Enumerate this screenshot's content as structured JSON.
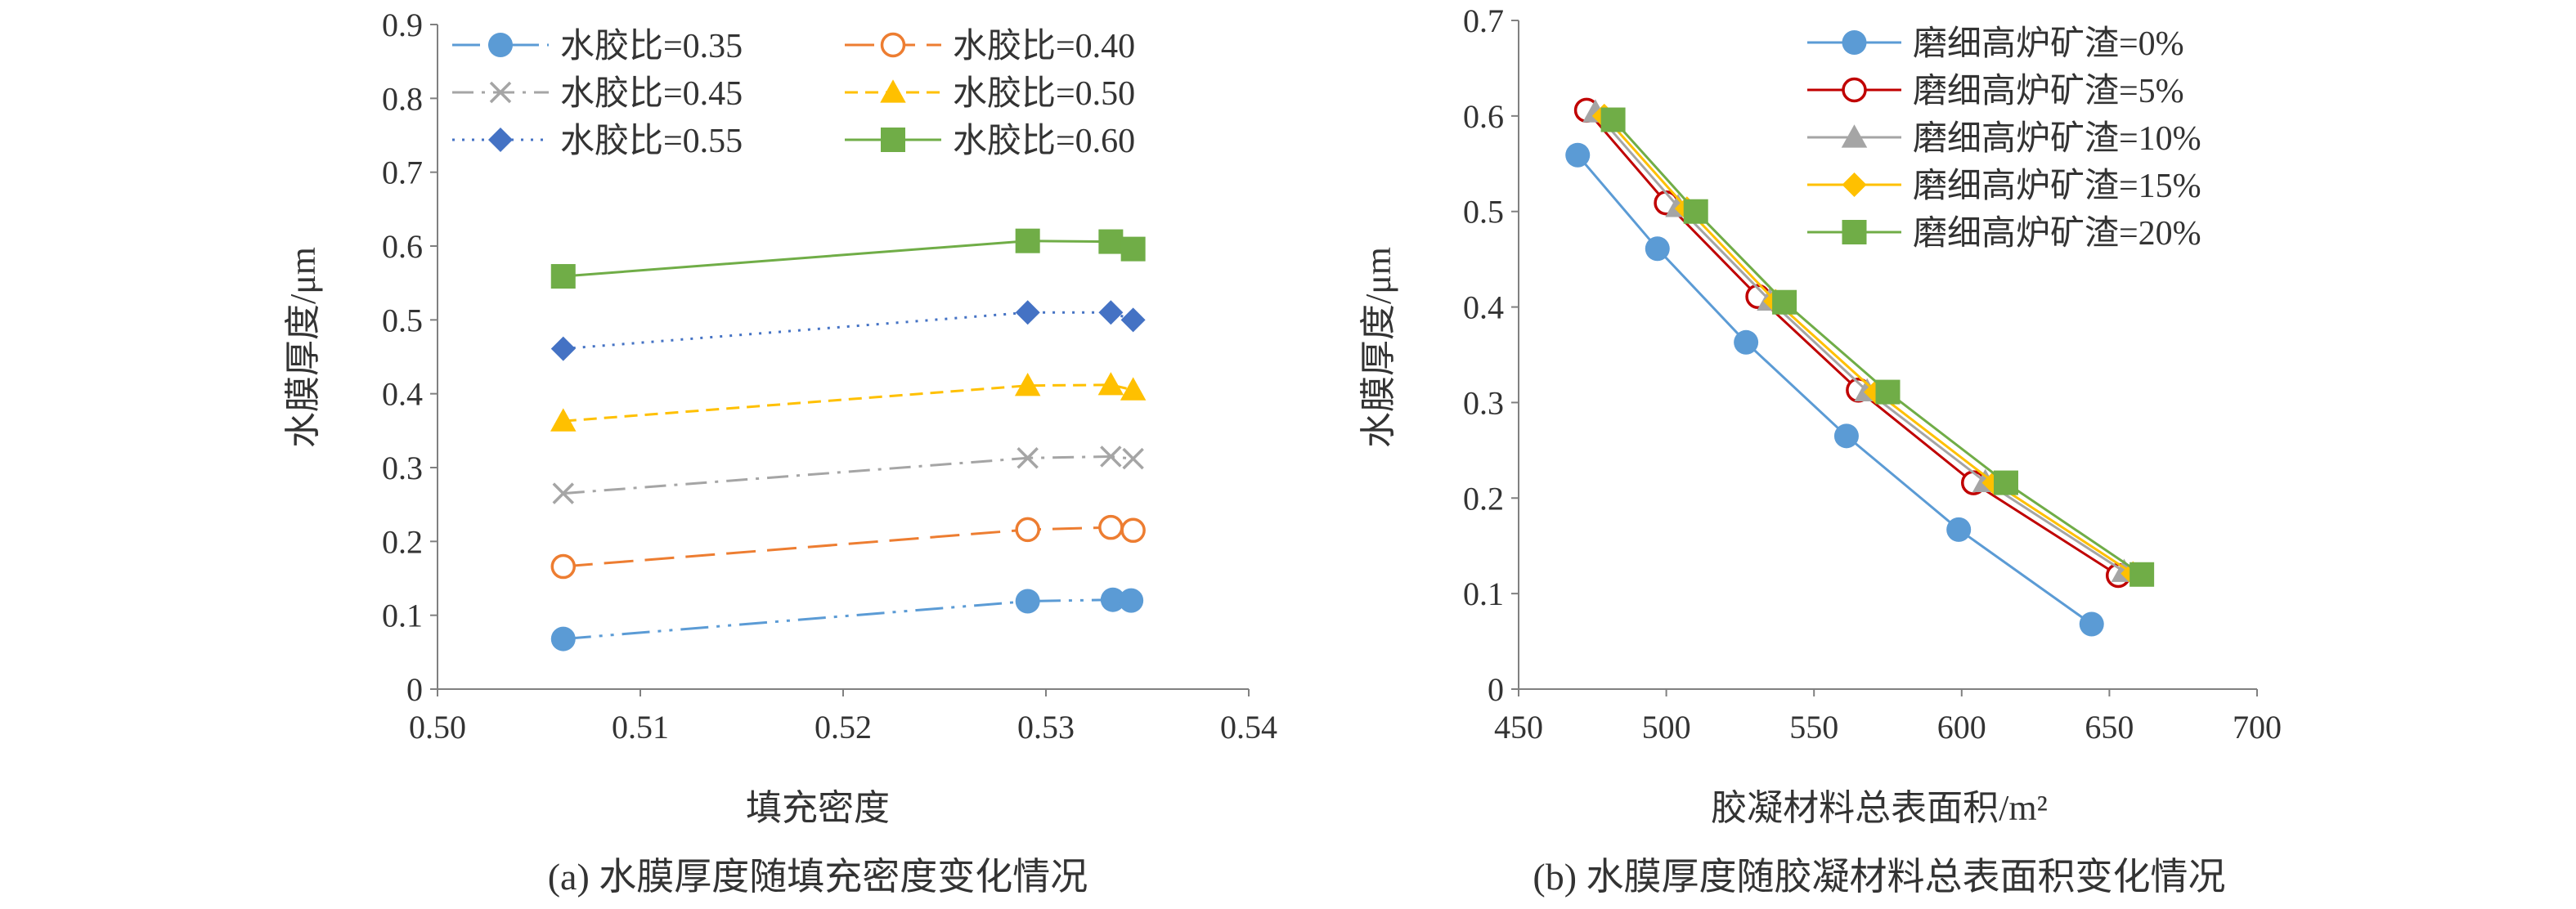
{
  "chart_data": [
    {
      "type": "line",
      "xlabel": "填充密度",
      "ylabel": "水膜厚度/μm",
      "xlim": [
        0.5,
        0.54
      ],
      "ylim": [
        0,
        0.9
      ],
      "xticks": [
        "0.50",
        "0.51",
        "0.52",
        "0.53",
        "0.54"
      ],
      "yticks": [
        "0",
        "0.1",
        "0.2",
        "0.3",
        "0.4",
        "0.5",
        "0.6",
        "0.7",
        "0.8",
        "0.9"
      ],
      "caption": "(a) 水膜厚度随填充密度变化情况",
      "legend_position": "top",
      "series": [
        {
          "name": "水胶比=0.35",
          "color": "#5B9BD5",
          "marker": "circle",
          "dash": "longdashdotdot",
          "x": [
            0.5062,
            0.5291,
            0.5333,
            0.5342
          ],
          "y": [
            0.068,
            0.119,
            0.121,
            0.12
          ]
        },
        {
          "name": "水胶比=0.40",
          "color": "#ED7D31",
          "marker": "circle-open",
          "dash": "longdash",
          "x": [
            0.5062,
            0.5291,
            0.5332,
            0.5343
          ],
          "y": [
            0.166,
            0.216,
            0.219,
            0.215
          ]
        },
        {
          "name": "水胶比=0.45",
          "color": "#A5A5A5",
          "marker": "x",
          "dash": "dashdot",
          "x": [
            0.5062,
            0.5291,
            0.5332,
            0.5343
          ],
          "y": [
            0.265,
            0.313,
            0.315,
            0.312
          ]
        },
        {
          "name": "水胶比=0.50",
          "color": "#FFC000",
          "marker": "triangle",
          "dash": "dash",
          "x": [
            0.5062,
            0.5291,
            0.5332,
            0.5343
          ],
          "y": [
            0.363,
            0.411,
            0.412,
            0.405
          ]
        },
        {
          "name": "水胶比=0.55",
          "color": "#4472C4",
          "marker": "diamond",
          "dash": "dot",
          "x": [
            0.5062,
            0.5291,
            0.5332,
            0.5343
          ],
          "y": [
            0.461,
            0.51,
            0.51,
            0.5
          ]
        },
        {
          "name": "水胶比=0.60",
          "color": "#70AD47",
          "marker": "square",
          "dash": "solid",
          "x": [
            0.5062,
            0.5291,
            0.5332,
            0.5343
          ],
          "y": [
            0.559,
            0.607,
            0.606,
            0.596
          ]
        }
      ]
    },
    {
      "type": "line",
      "xlabel": "胶凝材料总表面积/m²",
      "ylabel": "水膜厚度/μm",
      "xlim": [
        450,
        700
      ],
      "ylim": [
        0,
        0.7
      ],
      "xticks": [
        "450",
        "500",
        "550",
        "600",
        "650",
        "700"
      ],
      "yticks": [
        "0",
        "0.1",
        "0.2",
        "0.3",
        "0.4",
        "0.5",
        "0.6",
        "0.7"
      ],
      "caption": "(b) 水膜厚度随胶凝材料总表面积变化情况",
      "legend_position": "top-right",
      "series": [
        {
          "name": "磨细高炉矿渣=0%",
          "color": "#5B9BD5",
          "marker": "circle",
          "x": [
            470,
            497,
            527,
            561,
            599,
            644
          ],
          "y": [
            0.559,
            0.461,
            0.363,
            0.265,
            0.167,
            0.068
          ]
        },
        {
          "name": "磨细高炉矿渣=5%",
          "color": "#C00000",
          "marker": "circle-open",
          "x": [
            473,
            500,
            531,
            565,
            604,
            653
          ],
          "y": [
            0.606,
            0.509,
            0.411,
            0.313,
            0.216,
            0.119
          ]
        },
        {
          "name": "磨细高炉矿渣=10%",
          "color": "#A5A5A5",
          "marker": "triangle",
          "x": [
            476,
            504,
            535,
            568,
            608,
            655
          ],
          "y": [
            0.604,
            0.505,
            0.407,
            0.312,
            0.217,
            0.123
          ]
        },
        {
          "name": "磨细高炉矿渣=15%",
          "color": "#FFC000",
          "marker": "diamond",
          "x": [
            479,
            507,
            537,
            571,
            611,
            658
          ],
          "y": [
            0.6,
            0.503,
            0.406,
            0.311,
            0.216,
            0.121
          ]
        },
        {
          "name": "磨细高炉矿渣=20%",
          "color": "#70AD47",
          "marker": "square",
          "x": [
            482,
            510,
            540,
            575,
            615,
            661
          ],
          "y": [
            0.596,
            0.5,
            0.405,
            0.311,
            0.216,
            0.12
          ]
        }
      ]
    }
  ]
}
